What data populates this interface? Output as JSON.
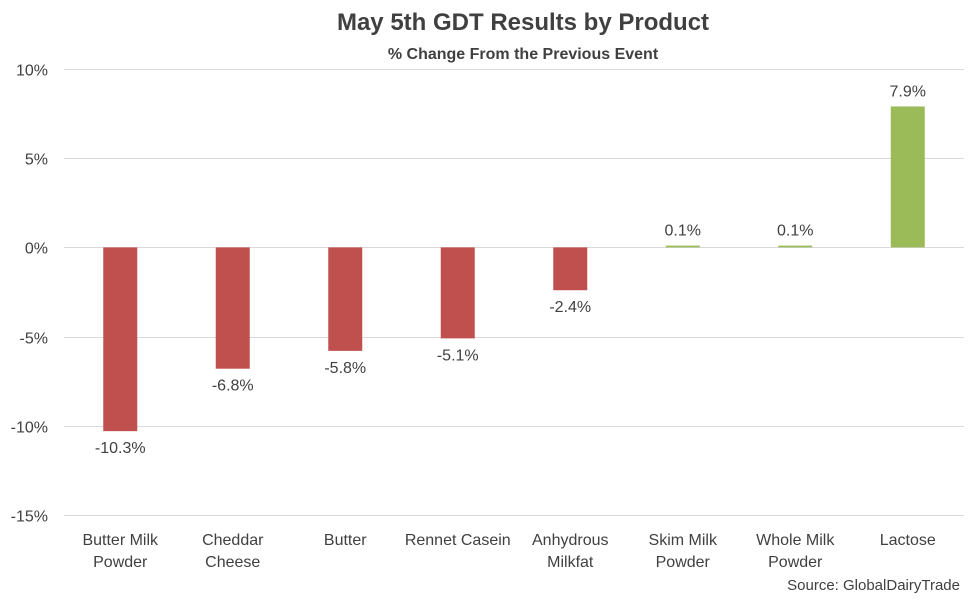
{
  "chart_data": {
    "type": "bar",
    "title": "May 5th GDT Results by Product",
    "subtitle": "% Change From the Previous Event",
    "categories": [
      [
        "Butter Milk",
        "Powder"
      ],
      [
        "Cheddar",
        "Cheese"
      ],
      [
        "Butter"
      ],
      [
        "Rennet Casein"
      ],
      [
        "Anhydrous",
        "Milkfat"
      ],
      [
        "Skim Milk",
        "Powder"
      ],
      [
        "Whole Milk",
        "Powder"
      ],
      [
        "Lactose"
      ]
    ],
    "values": [
      -10.3,
      -6.8,
      -5.8,
      -5.1,
      -2.4,
      0.1,
      0.1,
      7.9
    ],
    "data_labels": [
      "-10.3%",
      "-6.8%",
      "-5.8%",
      "-5.1%",
      "-2.4%",
      "0.1%",
      "0.1%",
      "7.9%"
    ],
    "ylim": [
      -15,
      10
    ],
    "yticks": [
      10,
      5,
      0,
      -5,
      -10,
      -15
    ],
    "ytick_labels": [
      "10%",
      "5%",
      "0%",
      "-5%",
      "-10%",
      "-15%"
    ],
    "grid": true,
    "legend": "none",
    "colors": {
      "negative": "#c0504d",
      "positive": "#9bbb59"
    },
    "source": "Source: GlobalDairyTrade"
  }
}
